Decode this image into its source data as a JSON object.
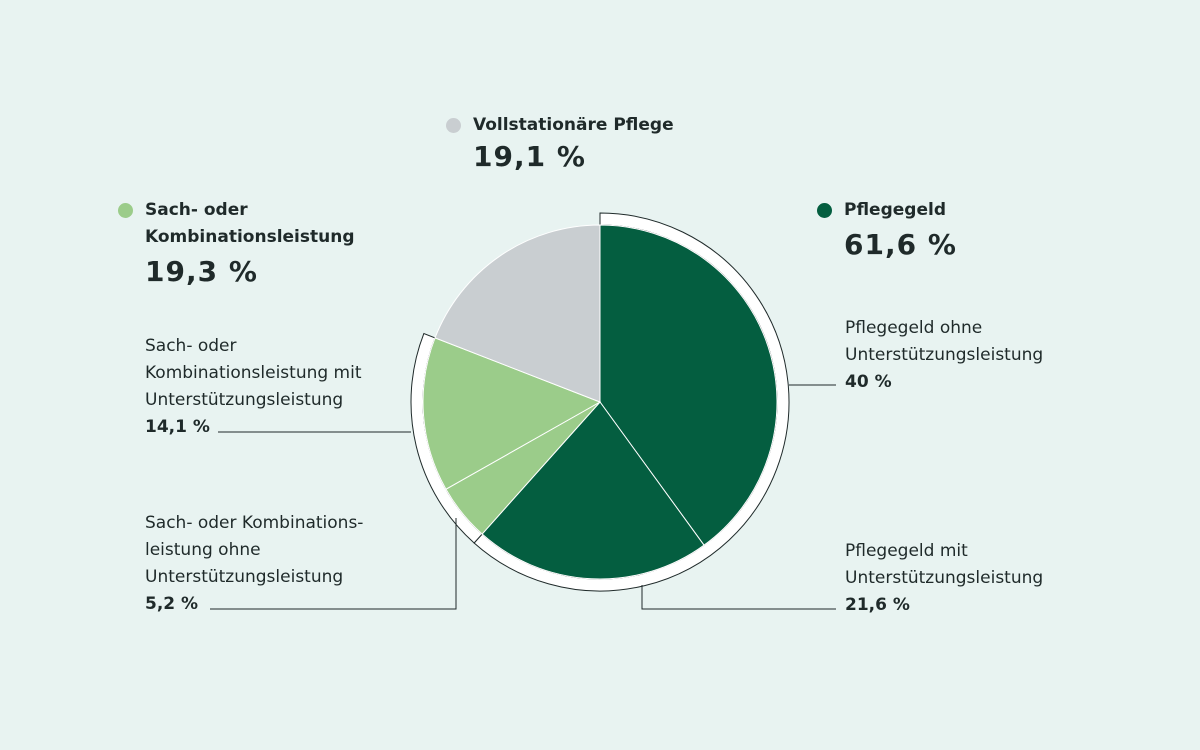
{
  "colors": {
    "background": "#e8f3f1",
    "pflegegeld": "#045e40",
    "sachleistung": "#9bcc8a",
    "vollstationaer": "#c9ced1",
    "line": "#1f2a2a"
  },
  "groups": {
    "vollstationaer": {
      "title": "Vollstationäre Pflege",
      "total": "19,1 %"
    },
    "pflegegeld": {
      "title": "Pflegegeld",
      "total": "61,6 %"
    },
    "sach": {
      "title_line1": "Sach- oder",
      "title_line2": "Kombinationsleistung",
      "total": "19,3 %"
    }
  },
  "subs": {
    "pflegegeld_ohne": {
      "l1": "Pflegegeld ohne",
      "l2": "Unterstützungsleistung",
      "pct": "40 %"
    },
    "pflegegeld_mit": {
      "l1": "Pflegegeld mit",
      "l2": "Unterstützungsleistung",
      "pct": "21,6 %"
    },
    "sach_mit": {
      "l1": "Sach- oder",
      "l2": "Kombinationsleistung mit",
      "l3": "Unterstützungsleistung",
      "pct": "14,1 %"
    },
    "sach_ohne": {
      "l1": "Sach- oder Kombinations-",
      "l2": "leistung ohne",
      "l3": "Unterstützungsleistung",
      "pct": "5,2 %"
    }
  },
  "chart_data": {
    "type": "pie",
    "start": "top, clockwise",
    "slices": [
      {
        "label": "Pflegegeld ohne Unterstützungsleistung",
        "value": 40,
        "group": "Pflegegeld",
        "color": "#045e40"
      },
      {
        "label": "Pflegegeld mit Unterstützungsleistung",
        "value": 21.6,
        "group": "Pflegegeld",
        "color": "#045e40"
      },
      {
        "label": "Sach- oder Kombinationsleistung ohne Unterstützungsleistung",
        "value": 5.2,
        "group": "Sach- oder Kombinationsleistung",
        "color": "#9bcc8a"
      },
      {
        "label": "Sach- oder Kombinationsleistung mit Unterstützungsleistung",
        "value": 14.1,
        "group": "Sach- oder Kombinationsleistung",
        "color": "#9bcc8a"
      },
      {
        "label": "Vollstationäre Pflege",
        "value": 19.1,
        "group": "Vollstationäre Pflege",
        "color": "#c9ced1"
      }
    ],
    "group_totals": [
      {
        "label": "Pflegegeld",
        "value": 61.6
      },
      {
        "label": "Sach- oder Kombinationsleistung",
        "value": 19.3
      },
      {
        "label": "Vollstationäre Pflege",
        "value": 19.1
      }
    ]
  }
}
